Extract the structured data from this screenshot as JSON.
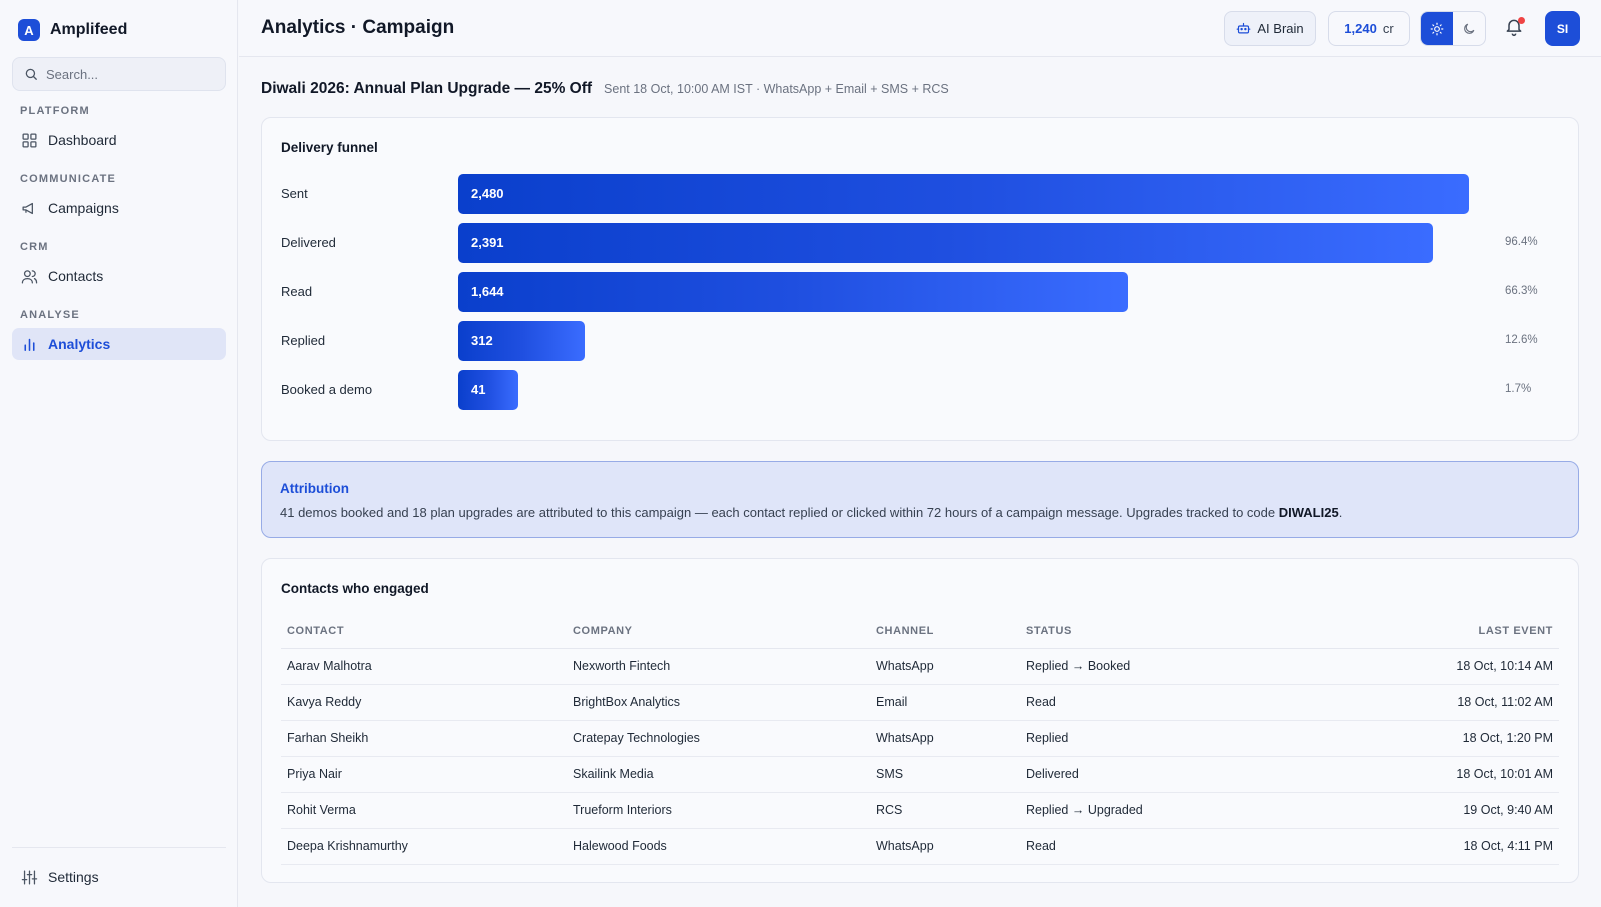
{
  "app": {
    "name": "Amplifeed",
    "logo_letter": "A"
  },
  "search": {
    "placeholder": "Search..."
  },
  "sidebar": {
    "sections": [
      {
        "label": "PLATFORM"
      },
      {
        "label": "COMMUNICATE"
      },
      {
        "label": "CRM"
      },
      {
        "label": "ANALYSE"
      }
    ],
    "items": [
      {
        "label": "Dashboard",
        "icon": "grid-icon"
      },
      {
        "label": "Campaigns",
        "icon": "megaphone-icon"
      },
      {
        "label": "Contacts",
        "icon": "users-icon"
      },
      {
        "label": "Analytics",
        "icon": "bar-chart-icon",
        "active": true
      }
    ],
    "settings_label": "Settings"
  },
  "topbar": {
    "title": "Analytics · Campaign",
    "ai_button": "AI Brain",
    "credits_value": "1,240",
    "credits_unit": "cr",
    "avatar_initials": "SI",
    "theme": "light"
  },
  "campaign": {
    "title": "Diwali 2026: Annual Plan Upgrade — 25% Off",
    "meta": "Sent 18 Oct, 10:00 AM IST · WhatsApp + Email + SMS + RCS"
  },
  "funnel": {
    "title": "Delivery funnel",
    "stages": [
      {
        "label": "Sent",
        "value": "2,480",
        "count": 2480,
        "pct": ""
      },
      {
        "label": "Delivered",
        "value": "2,391",
        "count": 2391,
        "pct": "96.4%"
      },
      {
        "label": "Read",
        "value": "1,644",
        "count": 1644,
        "pct": "66.3%"
      },
      {
        "label": "Replied",
        "value": "312",
        "count": 312,
        "pct": "12.6%"
      },
      {
        "label": "Booked a demo",
        "value": "41",
        "count": 41,
        "pct": "1.7%"
      }
    ]
  },
  "attribution": {
    "title": "Attribution",
    "text": "41 demos booked and 18 plan upgrades are attributed to this campaign — each contact replied or clicked within 72 hours of a campaign message. Upgrades tracked to code ",
    "code": "DIWALI25",
    "suffix": "."
  },
  "contacts": {
    "title": "Contacts who engaged",
    "columns": [
      "CONTACT",
      "COMPANY",
      "CHANNEL",
      "STATUS",
      "LAST EVENT"
    ],
    "rows": [
      [
        "Aarav Malhotra",
        "Nexworth Fintech",
        "WhatsApp",
        "Replied → Booked",
        "18 Oct, 10:14 AM"
      ],
      [
        "Kavya Reddy",
        "BrightBox Analytics",
        "Email",
        "Read",
        "18 Oct, 11:02 AM"
      ],
      [
        "Farhan Sheikh",
        "Cratepay Technologies",
        "WhatsApp",
        "Replied",
        "18 Oct, 1:20 PM"
      ],
      [
        "Priya Nair",
        "Skailink Media",
        "SMS",
        "Delivered",
        "18 Oct, 10:01 AM"
      ],
      [
        "Rohit Verma",
        "Trueform Interiors",
        "RCS",
        "Replied → Upgraded",
        "19 Oct, 9:40 AM"
      ],
      [
        "Deepa Krishnamurthy",
        "Halewood Foods",
        "WhatsApp",
        "Read",
        "18 Oct, 4:11 PM"
      ]
    ]
  }
}
